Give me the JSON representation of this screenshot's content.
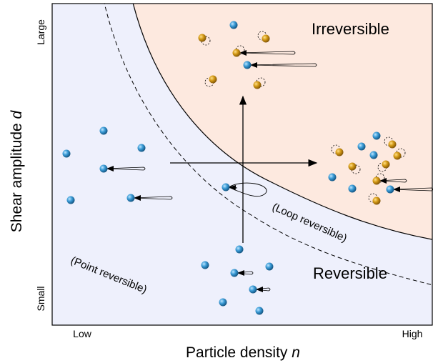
{
  "regions": {
    "irreversible": "Irreversible",
    "reversible": "Reversible",
    "loop": "(Loop reversible)",
    "point": "(Point reversible)"
  },
  "axis": {
    "y": {
      "label": "Shear amplitude",
      "symbol": "d",
      "high": "Large",
      "low": "Small"
    },
    "x": {
      "label": "Particle density",
      "symbol": "n",
      "low": "Low",
      "high": "High"
    }
  }
}
